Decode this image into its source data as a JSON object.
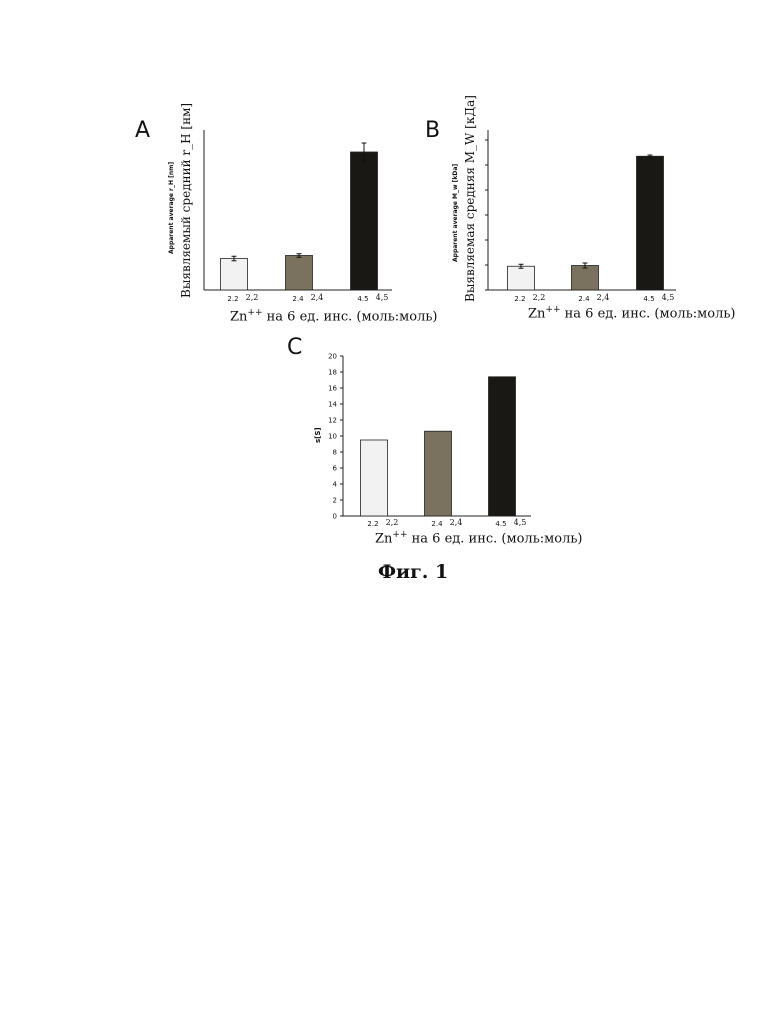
{
  "figure_label": "Фиг. 1",
  "chart_data": [
    {
      "panel": "A",
      "type": "bar",
      "categories": [
        "2.2",
        "2.4",
        "4.5"
      ],
      "categories_ru": [
        "2,2",
        "2,4",
        "4,5"
      ],
      "values": [
        2.1,
        2.3,
        9.2
      ],
      "errors": [
        0.15,
        0.12,
        0.6
      ],
      "colors": [
        "#f2f2f2",
        "#7a725f",
        "#1a1814"
      ],
      "ylabel_en": "Apparent average r_H [nm]",
      "ylabel_ru": "Выявляемый средний r_H [нм]",
      "xlabel_prefix": "Zn",
      "xlabel_sup": "++",
      "xlabel_rest": " на 6 ед. инс. (моль:моль)",
      "ylim": [
        0,
        10
      ]
    },
    {
      "panel": "B",
      "type": "bar",
      "categories": [
        "2.2",
        "2.4",
        "4.5"
      ],
      "categories_ru": [
        "2,2",
        "2,4",
        "4,5"
      ],
      "values": [
        95,
        98,
        535
      ],
      "errors": [
        8,
        10,
        5
      ],
      "colors": [
        "#f2f2f2",
        "#7a725f",
        "#1a1814"
      ],
      "ylabel_en": "Apparent average M_w [kDa]",
      "ylabel_ru": "Выявляемая средняя M_W [кДа]",
      "xlabel_prefix": "Zn",
      "xlabel_sup": "++",
      "xlabel_rest": " на 6 ед. инс. (моль:моль)",
      "ylim": [
        0,
        600
      ]
    },
    {
      "panel": "C",
      "type": "bar",
      "categories": [
        "2.2",
        "2.4",
        "4.5"
      ],
      "categories_ru": [
        "2,2",
        "2,4",
        "4,5"
      ],
      "values": [
        9.5,
        10.6,
        17.4
      ],
      "colors": [
        "#f2f2f2",
        "#7a725f",
        "#1a1814"
      ],
      "ylabel": "s[S]",
      "yticks": [
        "0",
        "2",
        "4",
        "6",
        "8",
        "10",
        "12",
        "14",
        "16",
        "18",
        "20"
      ],
      "xlabel_prefix": "Zn",
      "xlabel_sup": "++",
      "xlabel_rest": " на 6 ед. инс. (моль:моль)",
      "ylim": [
        0,
        20
      ]
    }
  ]
}
